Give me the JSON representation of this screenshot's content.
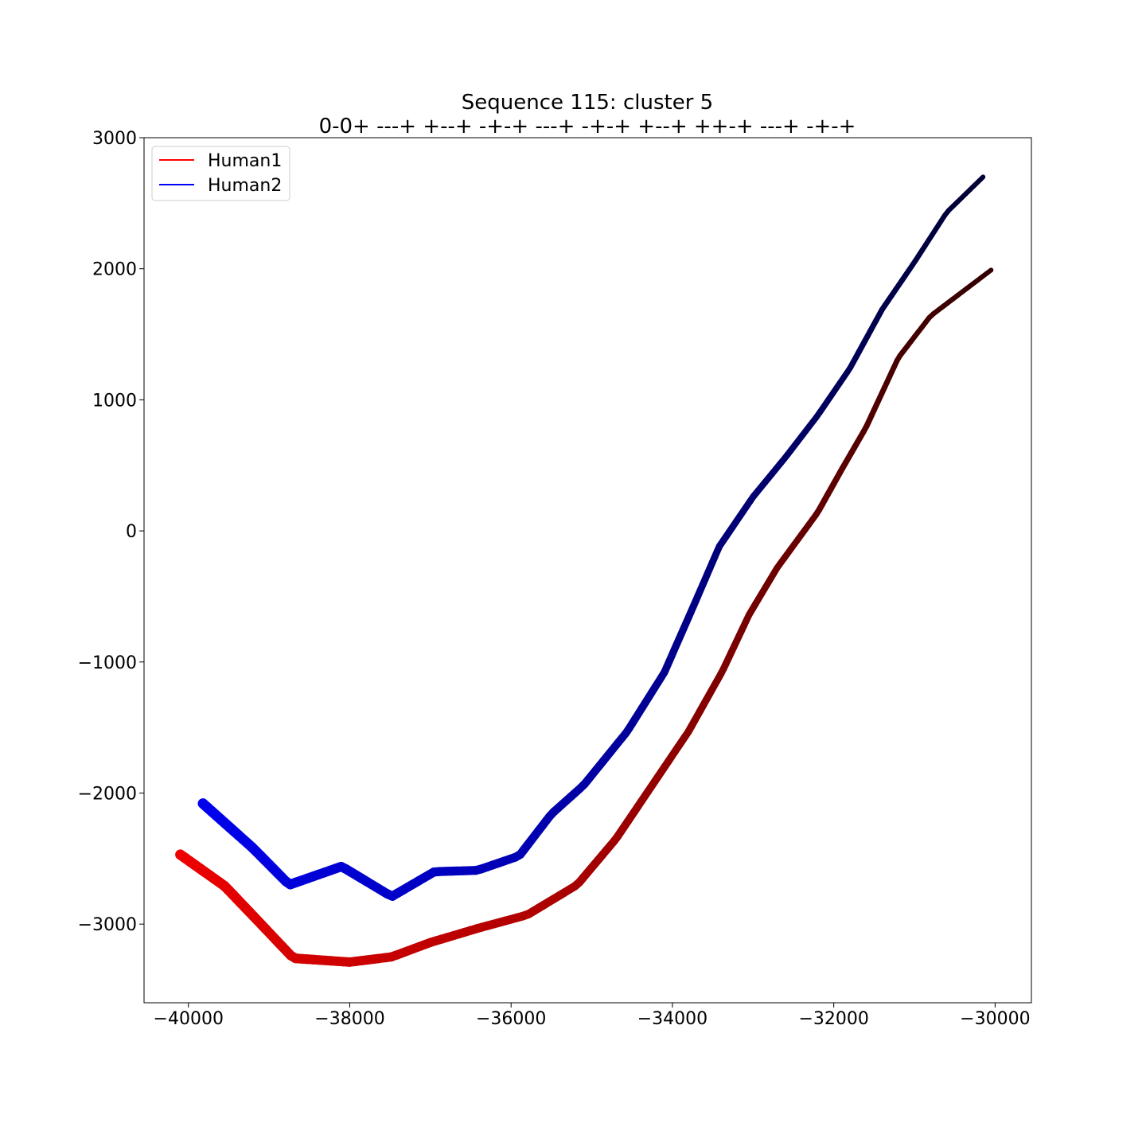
{
  "chart_data": {
    "type": "line",
    "title": "Sequence 115: cluster 5",
    "subtitle": "0-0+ ---+ +--+ -+-+ ---+ -+-+ +--+ ++-+ ---+ -+-+",
    "xlabel": "",
    "ylabel": "",
    "xlim": [
      -40550,
      -29550
    ],
    "ylim": [
      -3600,
      3000
    ],
    "xticks": [
      -40000,
      -38000,
      -36000,
      -34000,
      -32000,
      -30000
    ],
    "xtick_labels": [
      "−40000",
      "−38000",
      "−36000",
      "−34000",
      "−32000",
      "−30000"
    ],
    "yticks": [
      3000,
      2000,
      1000,
      0,
      -1000,
      -2000,
      -3000
    ],
    "ytick_labels": [
      "3000",
      "2000",
      "1000",
      "0",
      "−1000",
      "−2000",
      "−3000"
    ],
    "grid": false,
    "legend_position": "top-left",
    "series": [
      {
        "name": "Human1",
        "legend_color": "#ff0000",
        "color_start": "#ee0000",
        "color_end": "#330000",
        "x": [
          -40100,
          -39550,
          -39100,
          -38700,
          -38000,
          -37480,
          -37000,
          -36400,
          -35800,
          -35180,
          -34700,
          -34250,
          -33800,
          -33380,
          -33050,
          -32700,
          -32200,
          -31900,
          -31600,
          -31200,
          -30800,
          -30500,
          -30050
        ],
        "y": [
          -2470,
          -2710,
          -3000,
          -3260,
          -3290,
          -3250,
          -3140,
          -3030,
          -2930,
          -2700,
          -2350,
          -1940,
          -1530,
          -1070,
          -640,
          -280,
          140,
          470,
          790,
          1320,
          1640,
          1780,
          1990
        ]
      },
      {
        "name": "Human2",
        "legend_color": "#0000ff",
        "color_start": "#0000ee",
        "color_end": "#000033",
        "x": [
          -39820,
          -39200,
          -38750,
          -38100,
          -37480,
          -36950,
          -36420,
          -35900,
          -35500,
          -35100,
          -34560,
          -34100,
          -33750,
          -33420,
          -33000,
          -32600,
          -32200,
          -31800,
          -31400,
          -31000,
          -30600,
          -30150
        ],
        "y": [
          -2080,
          -2420,
          -2700,
          -2560,
          -2790,
          -2600,
          -2590,
          -2480,
          -2160,
          -1940,
          -1530,
          -1080,
          -590,
          -120,
          260,
          560,
          880,
          1240,
          1690,
          2050,
          2430,
          2700
        ]
      }
    ]
  }
}
